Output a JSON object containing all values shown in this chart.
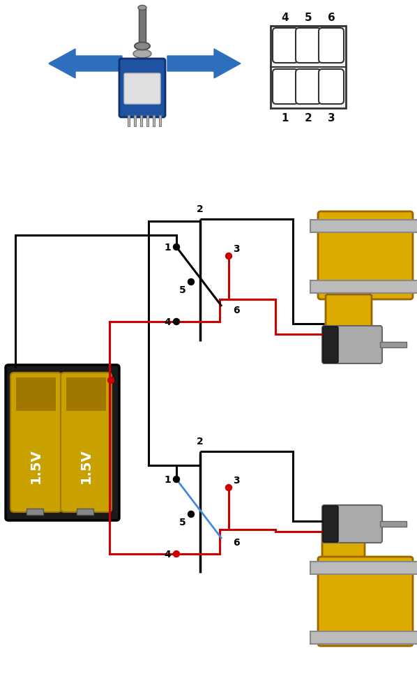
{
  "bg_color": "#ffffff",
  "figsize": [
    5.98,
    9.7
  ],
  "dpi": 100,
  "switch_pin_labels_top": [
    "4",
    "5",
    "6"
  ],
  "switch_pin_labels_bottom": [
    "1",
    "2",
    "3"
  ],
  "battery_label": "1.5V",
  "arrow_color": "#2d6fbd",
  "wire_black": "#000000",
  "wire_red": "#cc0000",
  "wire_blue": "#4488dd",
  "node_black": "#000000",
  "node_red": "#cc0000",
  "yellow_motor": "#ddaa00",
  "gray_axle": "#aaaaaa",
  "bat_dark": "#1a1a1a",
  "bat_gold": "#c8a000",
  "bat_gold_dark": "#a07800"
}
